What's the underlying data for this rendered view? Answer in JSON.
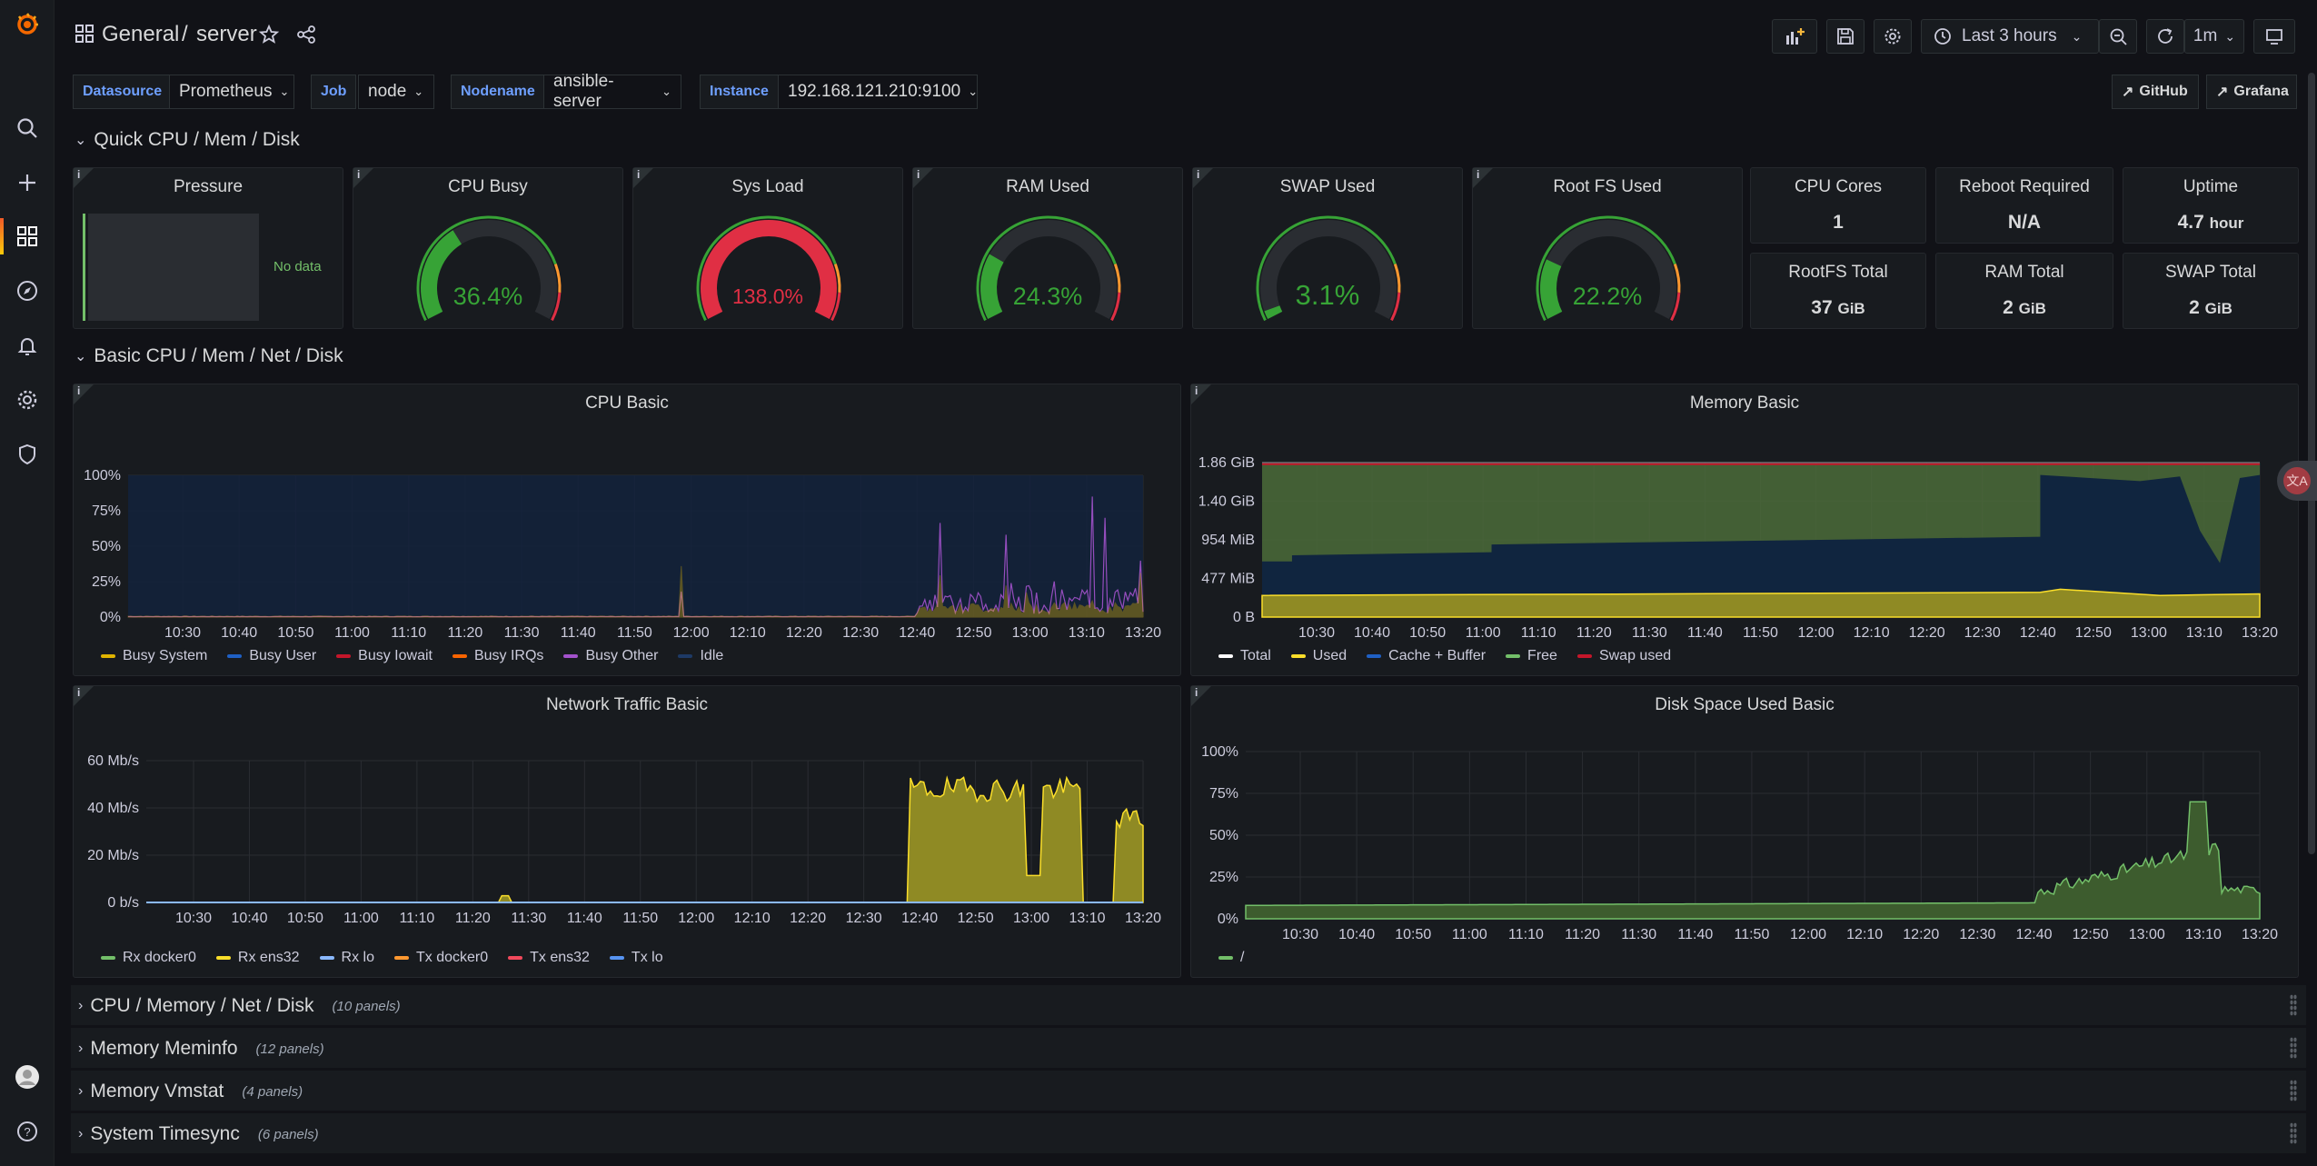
{
  "breadcrumb": {
    "folder": "General",
    "separator": "/",
    "dashboard": "server"
  },
  "toolbar": {
    "time_range": "Last 3 hours",
    "refresh_interval": "1m"
  },
  "variables": [
    {
      "label": "Datasource",
      "value": "Prometheus"
    },
    {
      "label": "Job",
      "value": "node"
    },
    {
      "label": "Nodename",
      "value": "ansible-server"
    },
    {
      "label": "Instance",
      "value": "192.168.121.210:9100"
    }
  ],
  "links": {
    "github": "GitHub",
    "grafana": "Grafana"
  },
  "rows": {
    "quick": "Quick CPU / Mem / Disk",
    "basic": "Basic CPU / Mem / Net / Disk",
    "collapsed": [
      {
        "title": "CPU / Memory / Net / Disk",
        "count": "(10 panels)"
      },
      {
        "title": "Memory Meminfo",
        "count": "(12 panels)"
      },
      {
        "title": "Memory Vmstat",
        "count": "(4 panels)"
      },
      {
        "title": "System Timesync",
        "count": "(6 panels)"
      }
    ]
  },
  "info_glyph": "i",
  "pressure": {
    "title": "Pressure",
    "no_data": "No data"
  },
  "gauges": [
    {
      "title": "CPU Busy",
      "value": "36.4%",
      "fraction": 0.364,
      "color": "#37a336"
    },
    {
      "title": "Sys Load",
      "value": "138.0%",
      "fraction": 1.0,
      "color": "#e02f44"
    },
    {
      "title": "RAM Used",
      "value": "24.3%",
      "fraction": 0.243,
      "color": "#37a336"
    },
    {
      "title": "SWAP Used",
      "value": "3.1%",
      "fraction": 0.031,
      "color": "#37a336"
    },
    {
      "title": "Root FS Used",
      "value": "22.2%",
      "fraction": 0.222,
      "color": "#37a336"
    }
  ],
  "stats": [
    {
      "title": "CPU Cores",
      "value": "1",
      "unit": ""
    },
    {
      "title": "Reboot Required",
      "value": "N/A",
      "unit": ""
    },
    {
      "title": "Uptime",
      "value": "4.7",
      "unit": "hour"
    },
    {
      "title": "RootFS Total",
      "value": "37",
      "unit": "GiB"
    },
    {
      "title": "RAM Total",
      "value": "2",
      "unit": "GiB"
    },
    {
      "title": "SWAP Total",
      "value": "2",
      "unit": "GiB"
    }
  ],
  "time_ticks": [
    "10:30",
    "10:40",
    "10:50",
    "11:00",
    "11:10",
    "11:20",
    "11:30",
    "11:40",
    "11:50",
    "12:00",
    "12:10",
    "12:20",
    "12:30",
    "12:40",
    "12:50",
    "13:00",
    "13:10",
    "13:20"
  ],
  "panels": {
    "cpu": {
      "title": "CPU Basic",
      "yticks": [
        "100%",
        "75%",
        "50%",
        "25%",
        "0%"
      ],
      "legend": [
        {
          "name": "Busy System",
          "color": "#e0b400"
        },
        {
          "name": "Busy User",
          "color": "#1f60c4"
        },
        {
          "name": "Busy Iowait",
          "color": "#c4162a"
        },
        {
          "name": "Busy IRQs",
          "color": "#fa6400"
        },
        {
          "name": "Busy Other",
          "color": "#a352cc"
        },
        {
          "name": "Idle",
          "color": "#1e3a66"
        }
      ]
    },
    "memory": {
      "title": "Memory Basic",
      "yticks": [
        "1.86 GiB",
        "1.40 GiB",
        "954 MiB",
        "477 MiB",
        "0 B"
      ],
      "legend": [
        {
          "name": "Total",
          "color": "#ffffff"
        },
        {
          "name": "Used",
          "color": "#fade2a"
        },
        {
          "name": "Cache + Buffer",
          "color": "#1f60c4"
        },
        {
          "name": "Free",
          "color": "#73bf69"
        },
        {
          "name": "Swap used",
          "color": "#c4162a"
        }
      ]
    },
    "network": {
      "title": "Network Traffic Basic",
      "yticks": [
        "60 Mb/s",
        "40 Mb/s",
        "20 Mb/s",
        "0 b/s"
      ],
      "legend": [
        {
          "name": "Rx docker0",
          "color": "#73bf69"
        },
        {
          "name": "Rx ens32",
          "color": "#fade2a"
        },
        {
          "name": "Rx lo",
          "color": "#8ab8ff"
        },
        {
          "name": "Tx docker0",
          "color": "#ff9830"
        },
        {
          "name": "Tx ens32",
          "color": "#f2495c"
        },
        {
          "name": "Tx lo",
          "color": "#5794f2"
        }
      ]
    },
    "disk": {
      "title": "Disk Space Used Basic",
      "yticks": [
        "100%",
        "75%",
        "50%",
        "25%",
        "0%"
      ],
      "legend": [
        {
          "name": "/",
          "color": "#73bf69"
        }
      ]
    }
  }
}
